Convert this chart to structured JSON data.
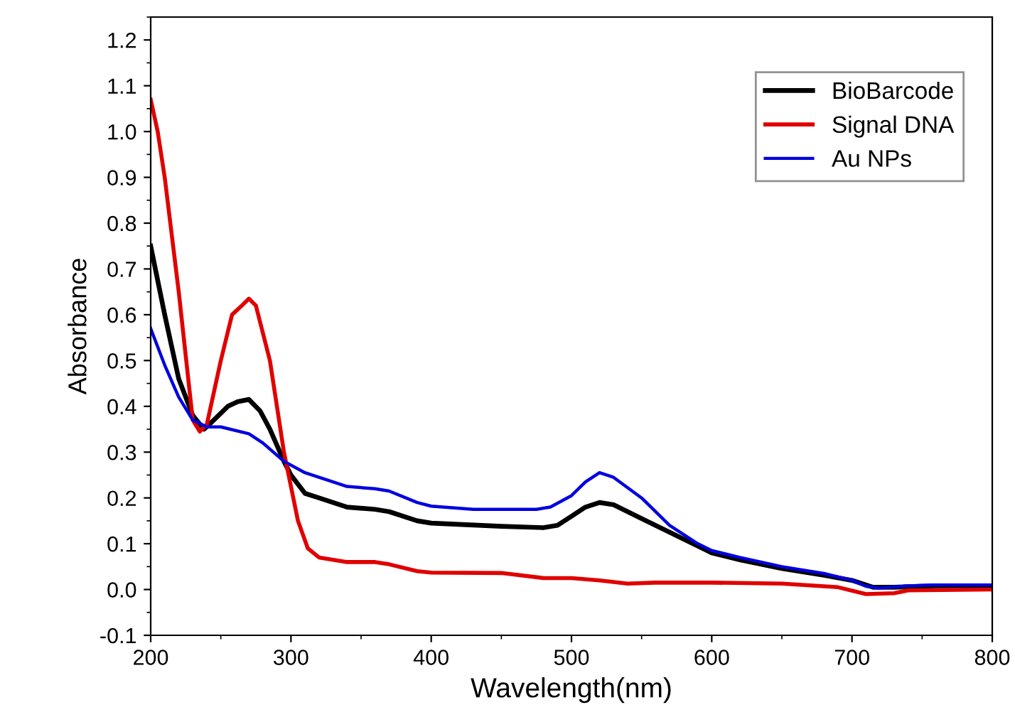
{
  "chart_data": {
    "type": "line",
    "xlabel": "Wavelength(nm)",
    "ylabel": "Absorbance",
    "xlim": [
      200,
      800
    ],
    "ylim": [
      -0.1,
      1.25
    ],
    "xticks": [
      200,
      300,
      400,
      500,
      600,
      700,
      800
    ],
    "yticks": [
      {
        "value": -0.1,
        "label": "-0.1"
      },
      {
        "value": 0,
        "label": "0.0"
      },
      0.1,
      0.2,
      0.3,
      0.4,
      0.5,
      0.6,
      0.7,
      0.8,
      0.9,
      {
        "value": 1.0,
        "label": "1.0"
      },
      1.1,
      1.2
    ],
    "grid": false,
    "legend": "top right",
    "marker": "none",
    "line_style": "solid",
    "series": [
      {
        "name": "BioBarcode",
        "color": "#000000",
        "x": [
          200,
          210,
          220,
          230,
          238,
          245,
          255,
          262,
          270,
          278,
          285,
          295,
          300,
          310,
          320,
          340,
          360,
          370,
          390,
          400,
          450,
          480,
          490,
          500,
          510,
          520,
          530,
          550,
          570,
          590,
          600,
          620,
          650,
          680,
          700,
          715,
          730,
          760,
          780,
          800
        ],
        "values": [
          0.75,
          0.6,
          0.46,
          0.38,
          0.35,
          0.37,
          0.4,
          0.41,
          0.415,
          0.39,
          0.35,
          0.28,
          0.25,
          0.21,
          0.2,
          0.18,
          0.175,
          0.17,
          0.15,
          0.145,
          0.138,
          0.135,
          0.14,
          0.16,
          0.18,
          0.19,
          0.185,
          0.155,
          0.125,
          0.095,
          0.08,
          0.065,
          0.046,
          0.031,
          0.02,
          0.005,
          0.005,
          0.008,
          0.008,
          0.005
        ]
      },
      {
        "name": "Signal DNA",
        "color": "#e00000",
        "x": [
          200,
          205,
          210,
          220,
          230,
          235,
          240,
          250,
          258,
          265,
          270,
          275,
          285,
          295,
          305,
          312,
          320,
          340,
          360,
          370,
          390,
          400,
          450,
          480,
          500,
          520,
          540,
          560,
          600,
          650,
          690,
          710,
          730,
          740,
          800
        ],
        "values": [
          1.07,
          1.0,
          0.9,
          0.65,
          0.37,
          0.345,
          0.36,
          0.5,
          0.6,
          0.62,
          0.635,
          0.62,
          0.5,
          0.3,
          0.15,
          0.09,
          0.07,
          0.06,
          0.06,
          0.055,
          0.04,
          0.037,
          0.036,
          0.025,
          0.025,
          0.02,
          0.013,
          0.015,
          0.015,
          0.013,
          0.005,
          -0.01,
          -0.008,
          -0.002,
          0.0
        ]
      },
      {
        "name": "Au NPs",
        "color": "#0000e0",
        "x": [
          200,
          210,
          220,
          230,
          240,
          250,
          270,
          280,
          295,
          310,
          320,
          340,
          360,
          370,
          390,
          400,
          430,
          450,
          475,
          485,
          500,
          510,
          520,
          530,
          550,
          570,
          590,
          600,
          620,
          650,
          680,
          700,
          710,
          720,
          740,
          760,
          800
        ],
        "values": [
          0.57,
          0.49,
          0.42,
          0.37,
          0.355,
          0.355,
          0.34,
          0.32,
          0.28,
          0.255,
          0.245,
          0.225,
          0.22,
          0.215,
          0.19,
          0.182,
          0.175,
          0.175,
          0.175,
          0.18,
          0.205,
          0.235,
          0.255,
          0.245,
          0.2,
          0.14,
          0.1,
          0.085,
          0.07,
          0.05,
          0.035,
          0.02,
          0.007,
          0.003,
          0.008,
          0.01,
          0.01
        ]
      }
    ]
  }
}
